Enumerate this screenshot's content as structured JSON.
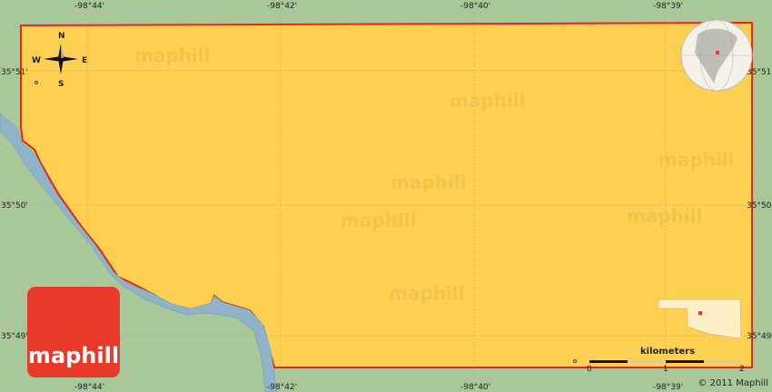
{
  "map": {
    "colors": {
      "land_outside": "#a9c89a",
      "region_fill": "#fed052",
      "border": "#e8261b",
      "water": "#8fb3c9",
      "logo": "#e8392a"
    },
    "longitude_labels_top": [
      "-98°44'",
      "-98°42'",
      "-98°40'",
      "-98°39'"
    ],
    "longitude_labels_bottom": [
      "-98°44'",
      "-98°42'",
      "-98°40'",
      "-98°39'"
    ],
    "latitude_labels_left": [
      "35°51'",
      "35°50'",
      "35°49'"
    ],
    "latitude_labels_right": [
      "35°51'",
      "35°50'",
      "35°49'"
    ],
    "compass": {
      "n": "N",
      "s": "S",
      "e": "E",
      "w": "W"
    },
    "scale": {
      "unit": "kilometers",
      "ticks": [
        "0",
        "1",
        "2"
      ]
    },
    "watermark": "maphill",
    "logo_text": "maphill",
    "copyright": "© 2011 Maphill",
    "inset_globe_icon": "globe-north-america-icon",
    "inset_state_icon": "oklahoma-outline-icon"
  }
}
